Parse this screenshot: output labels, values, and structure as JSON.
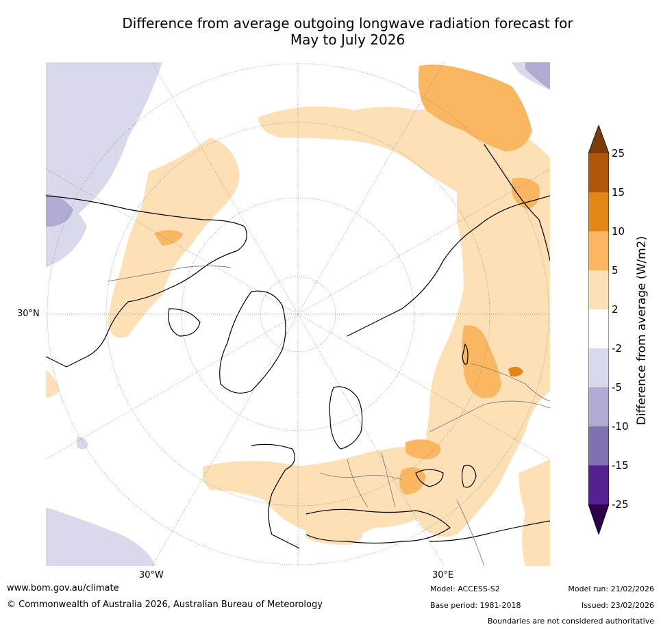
{
  "title_line1": "Difference from average outgoing longwave radiation forecast for",
  "title_line2": "May to July 2026",
  "map": {
    "projection": "north-polar-stereographic",
    "lat_label": "30°N",
    "lon_labels": [
      "30°W",
      "30°E"
    ]
  },
  "colorbar": {
    "title": "Difference from average (W/m2)",
    "tick_labels": [
      "25",
      "15",
      "10",
      "5",
      "2",
      "-2",
      "-5",
      "-10",
      "-15",
      "-25"
    ],
    "colors": [
      "#7b3c0c",
      "#b15709",
      "#e28617",
      "#fbb661",
      "#fde0b6",
      "#ffffff",
      "#d9d9ec",
      "#b1aad2",
      "#8072b0",
      "#552190",
      "#2d004b"
    ]
  },
  "footer": {
    "website": "www.bom.gov.au/climate",
    "copyright": "© Commonwealth of Australia 2026, Australian Bureau of Meteorology",
    "model": "Model: ACCESS-S2",
    "base_period": "Base period: 1981-2018",
    "model_run": "Model run: 21/02/2026",
    "issued": "Issued: 23/02/2026",
    "disclaimer": "Boundaries are not considered authoritative"
  }
}
